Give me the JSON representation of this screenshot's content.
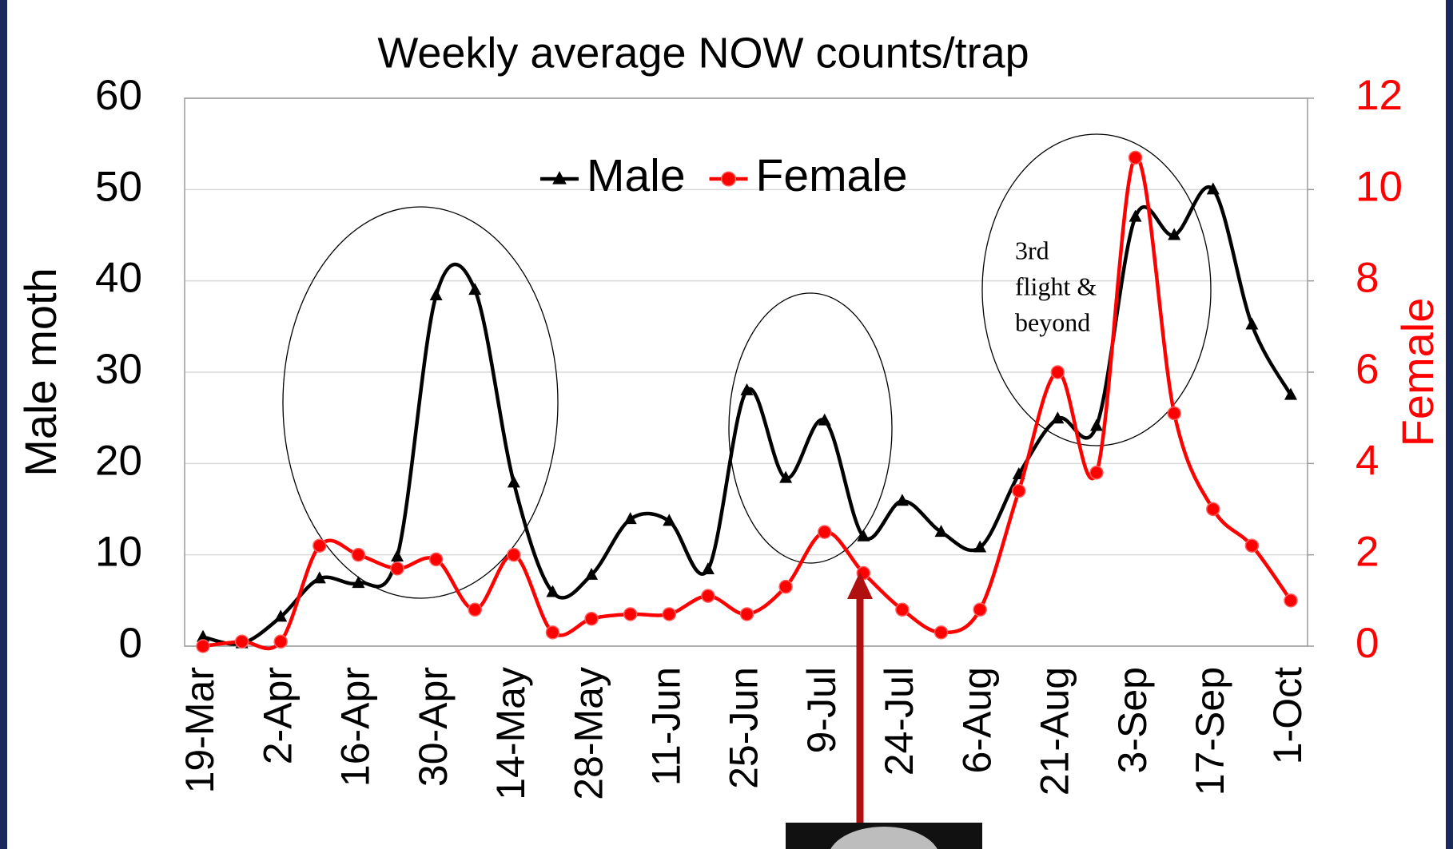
{
  "chart_data": {
    "type": "line",
    "title": "Weekly average NOW counts/trap",
    "ylabel": "Male moth",
    "y2label": "Female",
    "categories": [
      "19-Mar",
      null,
      "2-Apr",
      null,
      "16-Apr",
      null,
      "30-Apr",
      null,
      "14-May",
      null,
      "28-May",
      null,
      "11-Jun",
      null,
      "25-Jun",
      null,
      "9-Jul",
      null,
      "24-Jul",
      null,
      "6-Aug",
      null,
      "21-Aug",
      null,
      "3-Sep",
      null,
      "17-Sep",
      null,
      "1-Oct"
    ],
    "series": [
      {
        "name": "Male",
        "color": "#000000",
        "marker": "triangle",
        "values": [
          1,
          0.3,
          3.2,
          7.4,
          6.9,
          9.8,
          38.4,
          39,
          17.9,
          5.9,
          7.8,
          13.9,
          13.7,
          8.4,
          28,
          18.4,
          24.7,
          12,
          15.9,
          12.5,
          10.8,
          18.8,
          24.9,
          24.1,
          47,
          45,
          50,
          35.2,
          27.5
        ]
      },
      {
        "name": "Female",
        "color": "#ff0000",
        "marker": "circle",
        "axis": "y2",
        "values": [
          0,
          0.1,
          0.1,
          2.2,
          2,
          1.7,
          1.9,
          0.8,
          2,
          0.3,
          0.6,
          0.7,
          0.7,
          1.1,
          0.7,
          1.3,
          2.5,
          1.6,
          0.8,
          0.3,
          0.8,
          3.4,
          6,
          3.8,
          10.7,
          5.1,
          3,
          2.2,
          1
        ]
      }
    ],
    "ylim": [
      0,
      60
    ],
    "yticks": [
      0,
      10,
      20,
      30,
      40,
      50,
      60
    ],
    "y2lim": [
      0,
      12
    ],
    "y2ticks": [
      0,
      2,
      4,
      6,
      8,
      10,
      12
    ],
    "grid": true,
    "legend": "top",
    "annotation": [
      "3rd",
      "flight &",
      "beyond"
    ]
  }
}
